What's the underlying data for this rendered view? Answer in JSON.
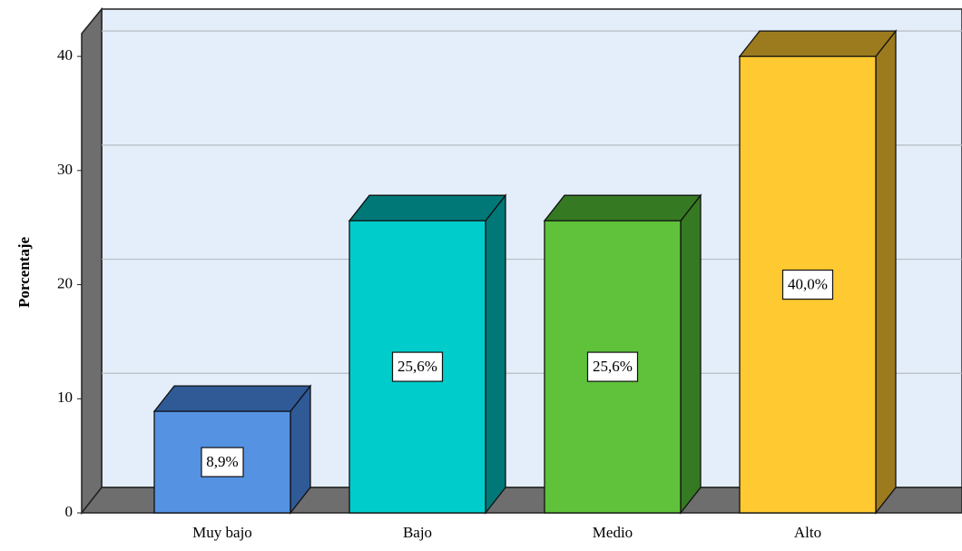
{
  "chart_data": {
    "type": "bar3d",
    "y_label": "Porcentaje",
    "categories": [
      "Muy bajo",
      "Bajo",
      "Medio",
      "Alto"
    ],
    "values": [
      8.9,
      25.6,
      25.6,
      40
    ],
    "value_labels": [
      "8,9%",
      "25,6%",
      "25,6%",
      "40,0%"
    ],
    "colors": [
      "#5592e2",
      "#00cccc",
      "#5fc23a",
      "#ffc931"
    ],
    "side_colors": [
      "#2f5a96",
      "#007878",
      "#357a22",
      "#9c7a1e"
    ],
    "ylim": [
      0,
      42
    ],
    "yticks": [
      0,
      10,
      20,
      30,
      40
    ],
    "grid": true
  }
}
